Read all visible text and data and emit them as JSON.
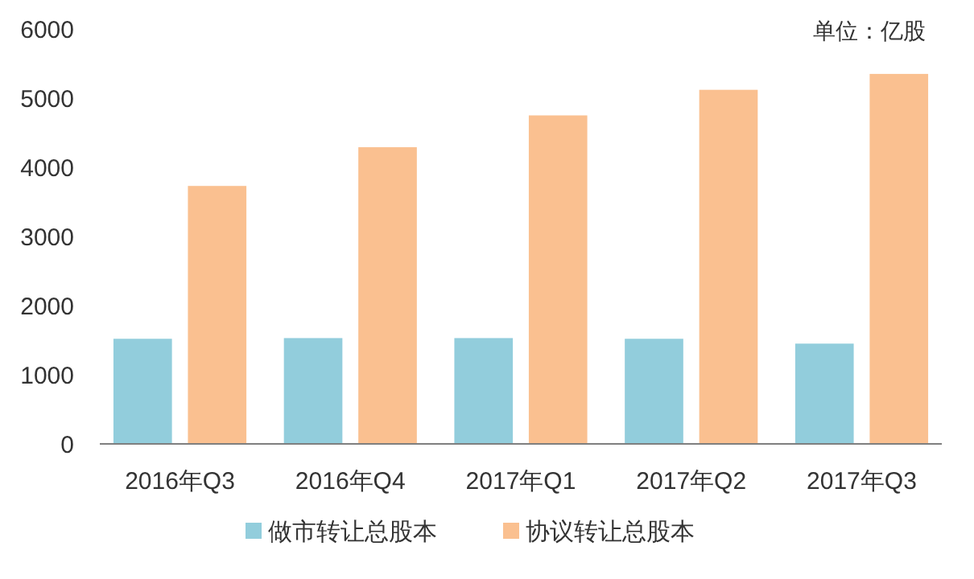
{
  "chart_data": {
    "type": "bar",
    "categories": [
      "2016年Q3",
      "2016年Q4",
      "2017年Q1",
      "2017年Q2",
      "2017年Q3"
    ],
    "series": [
      {
        "name": "做市转让总股本",
        "color": "#92cddc",
        "values": [
          1520,
          1530,
          1530,
          1520,
          1450
        ]
      },
      {
        "name": "协议转让总股本",
        "color": "#fac090",
        "values": [
          3730,
          4290,
          4750,
          5120,
          5350
        ]
      }
    ],
    "ylim": [
      0,
      6000
    ],
    "yticks": [
      0,
      1000,
      2000,
      3000,
      4000,
      5000,
      6000
    ],
    "grid": false,
    "legend": "bottom",
    "annotations": [
      "单位：亿股"
    ]
  }
}
